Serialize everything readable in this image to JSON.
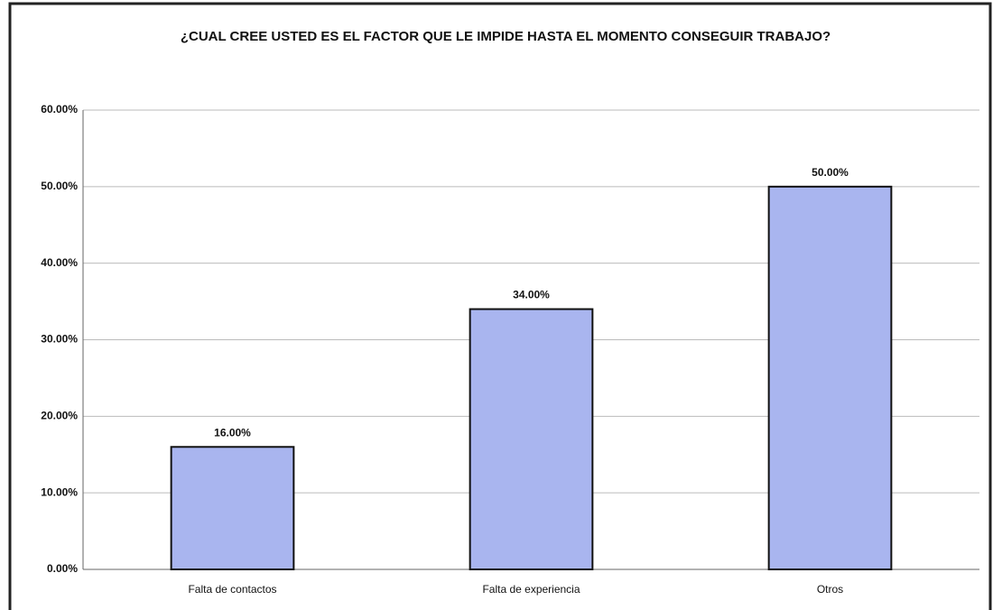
{
  "chart_data": {
    "type": "bar",
    "title": "¿CUAL CREE USTED ES EL FACTOR QUE LE IMPIDE HASTA EL MOMENTO CONSEGUIR TRABAJO?",
    "categories": [
      "Falta de contactos",
      "Falta de experiencia",
      "Otros"
    ],
    "values": [
      16,
      34,
      50
    ],
    "value_labels": [
      "16.00%",
      "34.00%",
      "50.00%"
    ],
    "color": "#a9b5ef",
    "ylim": [
      0,
      60
    ],
    "yticks": [
      {
        "value": 0,
        "label": "0.00%"
      },
      {
        "value": 10,
        "label": "10.00%"
      },
      {
        "value": 20,
        "label": "20.00%"
      },
      {
        "value": 30,
        "label": "30.00%"
      },
      {
        "value": 40,
        "label": "40.00%"
      },
      {
        "value": 50,
        "label": "50.00%"
      },
      {
        "value": 60,
        "label": "60.00%"
      }
    ],
    "grid": true
  }
}
